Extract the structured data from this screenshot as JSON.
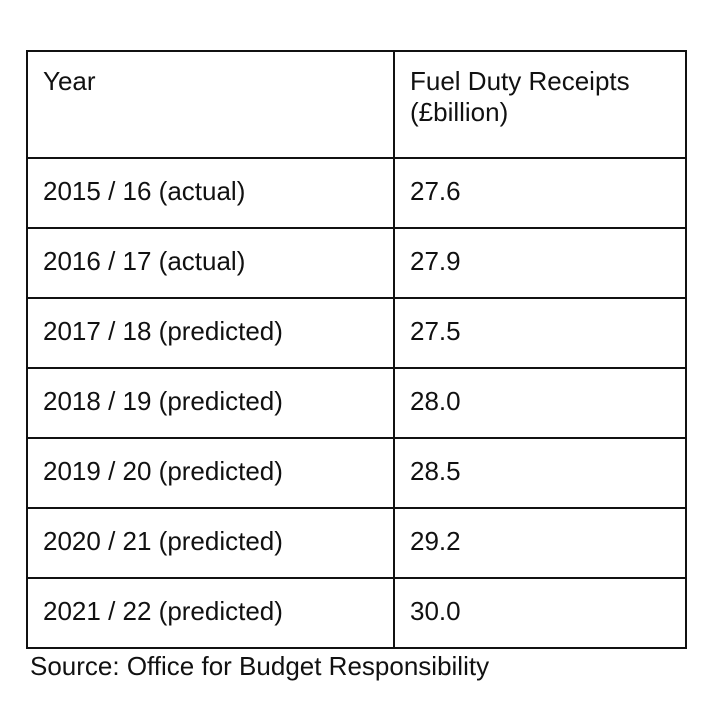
{
  "table": {
    "headers": [
      "Year",
      "Fuel Duty Receipts (£billion)"
    ],
    "rows": [
      [
        "2015 / 16 (actual)",
        "27.6"
      ],
      [
        "2016 / 17 (actual)",
        "27.9"
      ],
      [
        "2017 / 18 (predicted)",
        "27.5"
      ],
      [
        "2018 / 19 (predicted)",
        "28.0"
      ],
      [
        "2019 / 20 (predicted)",
        "28.5"
      ],
      [
        "2020 / 21 (predicted)",
        "29.2"
      ],
      [
        "2021 / 22 (predicted)",
        "30.0"
      ]
    ]
  },
  "source": "Source: Office for Budget Responsibility"
}
